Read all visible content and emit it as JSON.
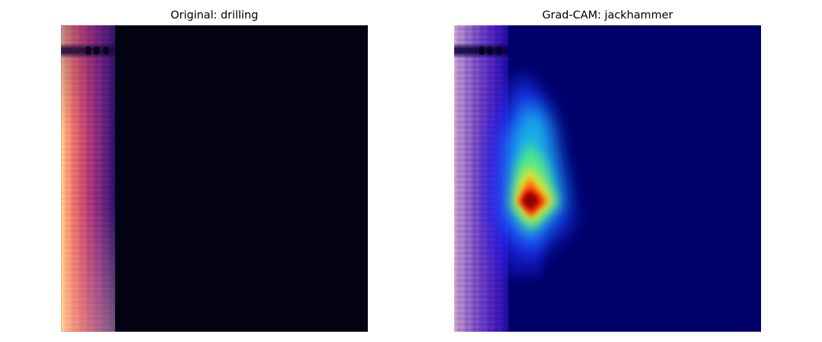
{
  "panels": {
    "original": {
      "title": "Original: drilling"
    },
    "gradcam": {
      "title": "Grad-CAM: jackhammer"
    }
  },
  "colors": {
    "spectrogram_background": "#020212",
    "gradcam_background": "#00006a",
    "heat_peak": "#8a0000"
  }
}
